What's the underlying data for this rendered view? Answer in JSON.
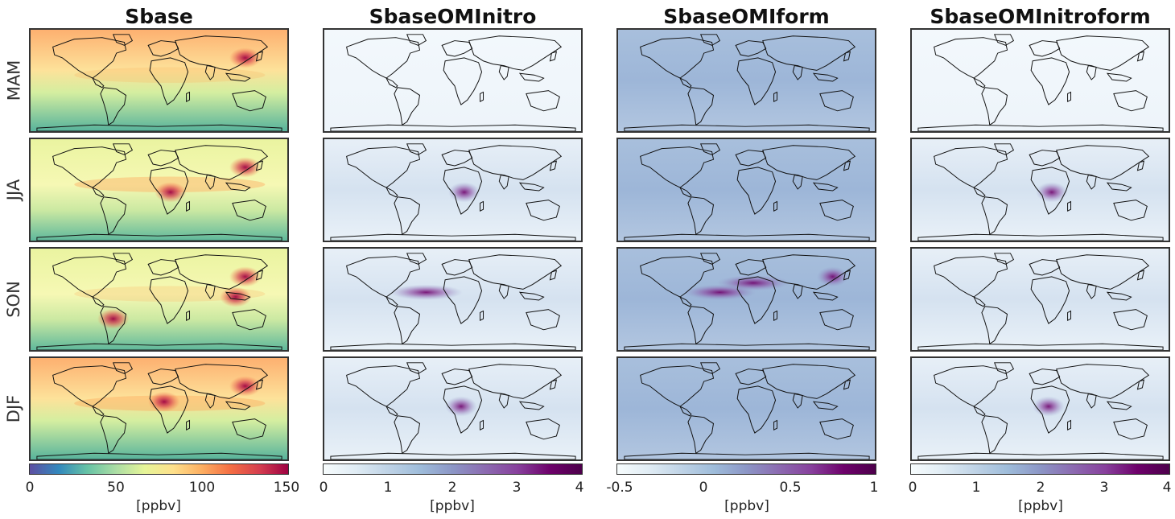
{
  "columns": [
    {
      "title": "Sbase",
      "colormap": "spectral",
      "ticks": [
        "0",
        "50",
        "100",
        "150"
      ],
      "unit": "[ppbv]"
    },
    {
      "title": "SbaseOMInitro",
      "colormap": "blue-purple",
      "ticks": [
        "0",
        "1",
        "2",
        "3",
        "4"
      ],
      "unit": "[ppbv]"
    },
    {
      "title": "SbaseOMIform",
      "colormap": "blue-purple",
      "ticks": [
        "-0.5",
        "0",
        "0.5",
        "1"
      ],
      "unit": "[ppbv]"
    },
    {
      "title": "SbaseOMInitroform",
      "colormap": "blue-purple",
      "ticks": [
        "0",
        "1",
        "2",
        "3",
        "4"
      ],
      "unit": "[ppbv]"
    }
  ],
  "rows": [
    "MAM",
    "JJA",
    "SON",
    "DJF"
  ],
  "colors": {
    "spectral": [
      "#5e4fa2",
      "#3288bd",
      "#66c2a5",
      "#abdda4",
      "#e6f598",
      "#fee08b",
      "#fdae61",
      "#f46d43",
      "#d53e4f",
      "#9e0142"
    ],
    "blue_purple": [
      "#f7fcfd",
      "#e0ecf4",
      "#bfd3e6",
      "#9ebcda",
      "#8c96c6",
      "#8c6bb1",
      "#88419d",
      "#6e016b",
      "#4d004b"
    ],
    "coastline": "#111111"
  },
  "chart_data": {
    "type": "heatmap",
    "panels": [
      {
        "column": "Sbase",
        "season": "MAM",
        "background": "green-to-orange latitudinal gradient",
        "hotspots": [
          "East Asia"
        ]
      },
      {
        "column": "Sbase",
        "season": "JJA",
        "background": "green-yellow",
        "hotspots": [
          "Central Africa",
          "East Asia"
        ]
      },
      {
        "column": "Sbase",
        "season": "SON",
        "background": "green-yellow",
        "hotspots": [
          "East Asia",
          "Southeast Asia",
          "South America"
        ]
      },
      {
        "column": "Sbase",
        "season": "DJF",
        "background": "green-to-orange",
        "hotspots": [
          "West Africa",
          "East Asia"
        ]
      },
      {
        "column": "SbaseOMInitro",
        "season": "MAM",
        "background": "near zero",
        "hotspots": []
      },
      {
        "column": "SbaseOMInitro",
        "season": "JJA",
        "background": "low",
        "hotspots": [
          "Central Africa"
        ]
      },
      {
        "column": "SbaseOMInitro",
        "season": "SON",
        "background": "low",
        "hotspots": [
          "Tropical Atlantic"
        ]
      },
      {
        "column": "SbaseOMInitro",
        "season": "DJF",
        "background": "low",
        "hotspots": [
          "West-Central Africa"
        ]
      },
      {
        "column": "SbaseOMIform",
        "season": "MAM",
        "background": "moderate blue",
        "hotspots": []
      },
      {
        "column": "SbaseOMIform",
        "season": "JJA",
        "background": "moderate blue",
        "hotspots": []
      },
      {
        "column": "SbaseOMIform",
        "season": "SON",
        "background": "moderate blue",
        "hotspots": [
          "Tropical Atlantic",
          "North Africa",
          "East Asia"
        ]
      },
      {
        "column": "SbaseOMIform",
        "season": "DJF",
        "background": "moderate blue",
        "hotspots": []
      },
      {
        "column": "SbaseOMInitroform",
        "season": "MAM",
        "background": "near zero",
        "hotspots": []
      },
      {
        "column": "SbaseOMInitroform",
        "season": "JJA",
        "background": "low",
        "hotspots": [
          "Central Africa"
        ]
      },
      {
        "column": "SbaseOMInitroform",
        "season": "SON",
        "background": "low",
        "hotspots": []
      },
      {
        "column": "SbaseOMInitroform",
        "season": "DJF",
        "background": "low",
        "hotspots": [
          "West-Central Africa"
        ]
      }
    ]
  }
}
